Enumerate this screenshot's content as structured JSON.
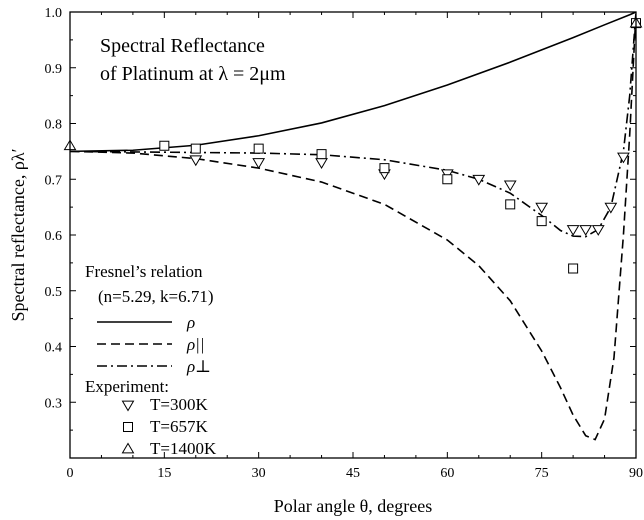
{
  "chart_data": {
    "type": "line",
    "title": [
      "Spectral Reflectance",
      "of Platinum at λ = 2μm"
    ],
    "xlabel": "Polar angle θ, degrees",
    "ylabel": "Spectral reflectance, ρλ′",
    "xlim": [
      0,
      90
    ],
    "ylim": [
      0.2,
      1.0
    ],
    "xticks": [
      "0",
      "15",
      "30",
      "45",
      "60",
      "75",
      "90"
    ],
    "yticks": [
      "0.3",
      "0.4",
      "0.5",
      "0.6",
      "0.7",
      "0.8",
      "0.9",
      "1.0"
    ],
    "grid": false,
    "legend_placement": "left",
    "model": {
      "heading": "Fresnel’s relation",
      "params": "(n=5.29, k=6.71)",
      "n": 5.29,
      "k": 6.71
    },
    "series": [
      {
        "name": "ρ",
        "kind": "line",
        "dash": "solid",
        "x": [
          0,
          10,
          20,
          30,
          40,
          50,
          60,
          70,
          75,
          80,
          85,
          89,
          90
        ],
        "y": [
          0.75,
          0.752,
          0.761,
          0.778,
          0.801,
          0.832,
          0.869,
          0.91,
          0.932,
          0.954,
          0.977,
          0.995,
          1.0
        ]
      },
      {
        "name": "ρ||",
        "kind": "line",
        "dash": "dashed",
        "x": [
          0,
          10,
          20,
          30,
          40,
          50,
          60,
          65,
          70,
          75,
          78,
          80,
          82,
          83.5,
          85,
          86.5,
          88,
          89,
          90
        ],
        "y": [
          0.75,
          0.747,
          0.737,
          0.72,
          0.695,
          0.655,
          0.591,
          0.545,
          0.482,
          0.392,
          0.326,
          0.277,
          0.24,
          0.233,
          0.27,
          0.38,
          0.6,
          0.78,
          1.0
        ]
      },
      {
        "name": "ρ⊥",
        "kind": "line",
        "dash": "dashdot",
        "x": [
          0,
          10,
          20,
          30,
          40,
          50,
          60,
          65,
          70,
          75,
          78,
          80,
          82,
          84,
          86,
          88,
          89,
          90
        ],
        "y": [
          0.75,
          0.749,
          0.748,
          0.747,
          0.744,
          0.735,
          0.716,
          0.7,
          0.675,
          0.635,
          0.608,
          0.598,
          0.597,
          0.61,
          0.65,
          0.75,
          0.85,
          1.0
        ]
      },
      {
        "name": "T=300K",
        "kind": "markers",
        "marker": "triangle-down",
        "x": [
          20,
          30,
          40,
          50,
          60,
          65,
          70,
          75,
          80,
          82,
          84,
          86,
          88
        ],
        "y": [
          0.735,
          0.73,
          0.73,
          0.71,
          0.71,
          0.7,
          0.69,
          0.65,
          0.61,
          0.61,
          0.61,
          0.65,
          0.74
        ]
      },
      {
        "name": "T=657K",
        "kind": "markers",
        "marker": "square",
        "x": [
          15,
          20,
          30,
          40,
          50,
          60,
          70,
          75,
          80,
          90
        ],
        "y": [
          0.76,
          0.755,
          0.755,
          0.745,
          0.72,
          0.7,
          0.655,
          0.625,
          0.54,
          0.98
        ]
      },
      {
        "name": "T=1400K",
        "kind": "markers",
        "marker": "triangle-up",
        "x": [
          0,
          90
        ],
        "y": [
          0.76,
          0.98
        ]
      }
    ],
    "legend": {
      "lines": [
        {
          "label": "ρ",
          "dash": "solid"
        },
        {
          "label": "ρ||",
          "dash": "dashed"
        },
        {
          "label": "ρ⊥",
          "dash": "dashdot"
        }
      ],
      "experiment_heading": "Experiment:",
      "markers": [
        {
          "label": "T=300K",
          "marker": "triangle-down"
        },
        {
          "label": "T=657K",
          "marker": "square"
        },
        {
          "label": "T=1400K",
          "marker": "triangle-up"
        }
      ]
    }
  }
}
